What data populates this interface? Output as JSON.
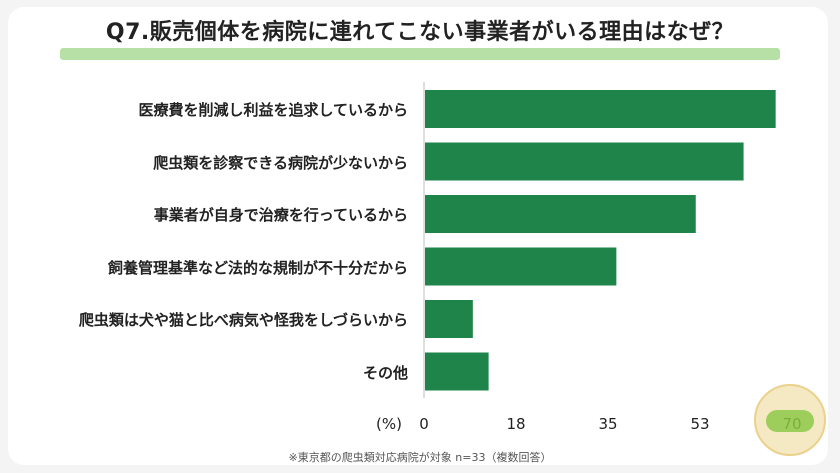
{
  "title": "Q7.販売個体を病院に連れてこない事業者がいる理由はなぜ？",
  "footnote": "※東京都の爬虫類対応病院が対象 n=33（複数回答）",
  "colors": {
    "bar": "#1e8449",
    "title_highlight": "#b7e0a6"
  },
  "chart_data": {
    "type": "bar",
    "orientation": "horizontal",
    "title": "Q7.販売個体を病院に連れてこない事業者がいる理由はなぜ？",
    "xlabel": "(%)",
    "ylabel": "",
    "categories": [
      "医療費を削減し利益を追求しているから",
      "爬虫類を診察できる病院が少ないから",
      "事業者が自身で治療を行っているから",
      "飼養管理基準など法的な規制が不十分だから",
      "爬虫類は犬や猫と比べ病気や怪我をしづらいから",
      "その他"
    ],
    "values": [
      66.7,
      60.6,
      51.5,
      36.4,
      9.1,
      12.1
    ],
    "xlim": [
      0,
      70
    ],
    "xticks": [
      "0",
      "18",
      "35",
      "53",
      "70"
    ],
    "tick_values": [
      0,
      17.5,
      35,
      52.5,
      70
    ],
    "grid": false,
    "legend": "none"
  }
}
